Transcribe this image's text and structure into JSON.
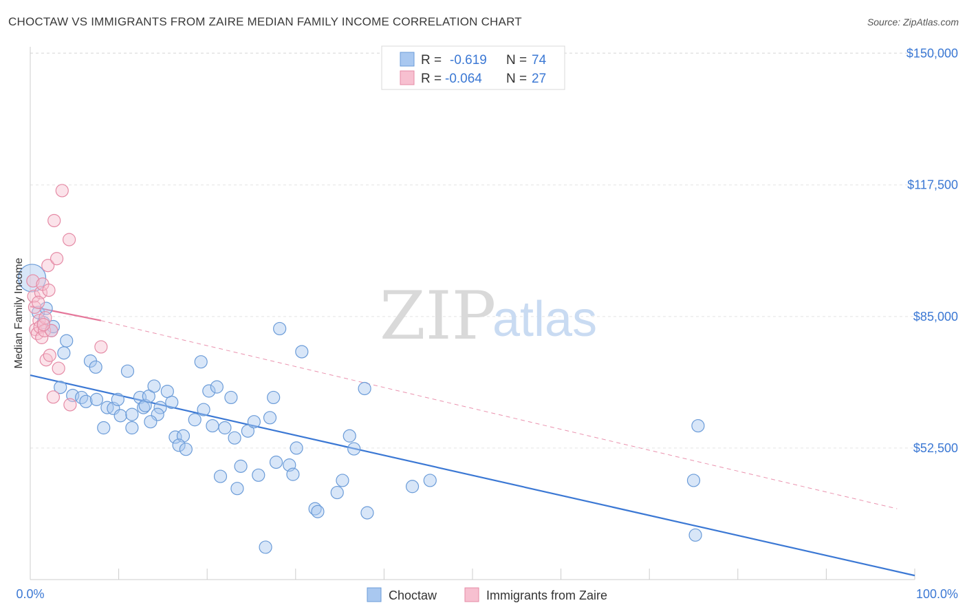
{
  "title": "CHOCTAW VS IMMIGRANTS FROM ZAIRE MEDIAN FAMILY INCOME CORRELATION CHART",
  "source": "Source: ZipAtlas.com",
  "watermark": {
    "zip": "ZIP",
    "atlas": "atlas"
  },
  "legend_top": [
    {
      "r_label": "R =",
      "r_value": "-0.619",
      "n_label": "N =",
      "n_value": "74",
      "color": "#a9c8f0",
      "stroke": "#6a9bd8"
    },
    {
      "r_label": "R =",
      "r_value": "-0.064",
      "n_label": "N =",
      "n_value": "27",
      "color": "#f7c0d0",
      "stroke": "#e58aa5"
    }
  ],
  "legend_bottom": [
    {
      "label": "Choctaw",
      "color": "#a9c8f0",
      "stroke": "#6a9bd8"
    },
    {
      "label": "Immigrants from Zaire",
      "color": "#f7c0d0",
      "stroke": "#e58aa5"
    }
  ],
  "chart_data": {
    "type": "scatter",
    "title": "CHOCTAW VS IMMIGRANTS FROM ZAIRE MEDIAN FAMILY INCOME CORRELATION CHART",
    "xlabel": "",
    "ylabel": "Median Family Income",
    "xlim": [
      0,
      100
    ],
    "ylim": [
      20000,
      153000
    ],
    "x_tick_labels": [
      "0.0%",
      "100.0%"
    ],
    "y_ticks": [
      52500,
      85000,
      117500,
      150000
    ],
    "y_tick_labels": [
      "$52,500",
      "$85,000",
      "$117,500",
      "$150,000"
    ],
    "grid": "horizontal dashed",
    "legend": "top-center",
    "series": [
      {
        "name": "Choctaw",
        "color": "#3b78d4",
        "trend": {
          "x": [
            0,
            100
          ],
          "y": [
            70500,
            21000
          ],
          "style": "solid"
        },
        "points": [
          {
            "x": 0.2,
            "y": 94500,
            "big": true
          },
          {
            "x": 0.9,
            "y": 86000
          },
          {
            "x": 1.8,
            "y": 87000
          },
          {
            "x": 1.5,
            "y": 83500
          },
          {
            "x": 2.4,
            "y": 81500
          },
          {
            "x": 2.6,
            "y": 82500
          },
          {
            "x": 4.1,
            "y": 79000
          },
          {
            "x": 3.8,
            "y": 76000
          },
          {
            "x": 6.8,
            "y": 74000
          },
          {
            "x": 7.4,
            "y": 72500
          },
          {
            "x": 11.0,
            "y": 71500
          },
          {
            "x": 3.4,
            "y": 67500
          },
          {
            "x": 4.8,
            "y": 65500
          },
          {
            "x": 5.8,
            "y": 65000
          },
          {
            "x": 6.3,
            "y": 64000
          },
          {
            "x": 7.5,
            "y": 64500
          },
          {
            "x": 8.7,
            "y": 62500
          },
          {
            "x": 9.4,
            "y": 62300
          },
          {
            "x": 9.9,
            "y": 64500
          },
          {
            "x": 10.2,
            "y": 60500
          },
          {
            "x": 11.5,
            "y": 60800
          },
          {
            "x": 8.3,
            "y": 57500
          },
          {
            "x": 11.5,
            "y": 57500
          },
          {
            "x": 12.4,
            "y": 65000
          },
          {
            "x": 12.8,
            "y": 62500
          },
          {
            "x": 13.0,
            "y": 63000
          },
          {
            "x": 13.4,
            "y": 65300
          },
          {
            "x": 14.0,
            "y": 67800
          },
          {
            "x": 14.7,
            "y": 62500
          },
          {
            "x": 15.5,
            "y": 66500
          },
          {
            "x": 14.4,
            "y": 60800
          },
          {
            "x": 13.6,
            "y": 59000
          },
          {
            "x": 16.0,
            "y": 63800
          },
          {
            "x": 16.4,
            "y": 55200
          },
          {
            "x": 17.3,
            "y": 55500
          },
          {
            "x": 16.8,
            "y": 53200
          },
          {
            "x": 17.6,
            "y": 52200
          },
          {
            "x": 18.6,
            "y": 59500
          },
          {
            "x": 19.3,
            "y": 73800
          },
          {
            "x": 19.6,
            "y": 62000
          },
          {
            "x": 20.2,
            "y": 66600
          },
          {
            "x": 20.6,
            "y": 58000
          },
          {
            "x": 21.1,
            "y": 67600
          },
          {
            "x": 21.5,
            "y": 45500
          },
          {
            "x": 22.0,
            "y": 57500
          },
          {
            "x": 22.7,
            "y": 65000
          },
          {
            "x": 23.1,
            "y": 55000
          },
          {
            "x": 23.4,
            "y": 42500
          },
          {
            "x": 23.8,
            "y": 48000
          },
          {
            "x": 24.6,
            "y": 56700
          },
          {
            "x": 25.3,
            "y": 59000
          },
          {
            "x": 25.8,
            "y": 45800
          },
          {
            "x": 26.6,
            "y": 28000
          },
          {
            "x": 27.1,
            "y": 60000
          },
          {
            "x": 27.5,
            "y": 65000
          },
          {
            "x": 27.8,
            "y": 49000
          },
          {
            "x": 28.2,
            "y": 82000
          },
          {
            "x": 29.3,
            "y": 48300
          },
          {
            "x": 29.7,
            "y": 46000
          },
          {
            "x": 30.1,
            "y": 52500
          },
          {
            "x": 30.7,
            "y": 76300
          },
          {
            "x": 32.2,
            "y": 37500
          },
          {
            "x": 32.5,
            "y": 36800
          },
          {
            "x": 34.7,
            "y": 41500
          },
          {
            "x": 35.3,
            "y": 44500
          },
          {
            "x": 36.1,
            "y": 55500
          },
          {
            "x": 36.6,
            "y": 52300
          },
          {
            "x": 37.8,
            "y": 67200
          },
          {
            "x": 38.1,
            "y": 36500
          },
          {
            "x": 43.2,
            "y": 43000
          },
          {
            "x": 45.2,
            "y": 44500
          },
          {
            "x": 75.0,
            "y": 44500
          },
          {
            "x": 75.5,
            "y": 58000
          },
          {
            "x": 75.2,
            "y": 31000
          }
        ]
      },
      {
        "name": "Immigrants from Zaire",
        "color": "#e5779a",
        "trend": {
          "x": [
            0,
            8
          ],
          "y": [
            87500,
            84000
          ],
          "style": "solid",
          "extended_x": [
            8,
            98
          ],
          "extended_y": [
            84000,
            37500
          ],
          "extended_style": "dashed"
        },
        "points": [
          {
            "x": 0.3,
            "y": 93800
          },
          {
            "x": 0.4,
            "y": 90000
          },
          {
            "x": 0.5,
            "y": 87300
          },
          {
            "x": 0.6,
            "y": 81800
          },
          {
            "x": 0.8,
            "y": 80800
          },
          {
            "x": 1.0,
            "y": 84000
          },
          {
            "x": 1.1,
            "y": 82400
          },
          {
            "x": 1.2,
            "y": 90900
          },
          {
            "x": 1.3,
            "y": 79800
          },
          {
            "x": 1.4,
            "y": 93000
          },
          {
            "x": 1.6,
            "y": 81500
          },
          {
            "x": 1.7,
            "y": 84700
          },
          {
            "x": 1.8,
            "y": 74300
          },
          {
            "x": 2.0,
            "y": 97600
          },
          {
            "x": 2.1,
            "y": 91500
          },
          {
            "x": 2.2,
            "y": 75400
          },
          {
            "x": 2.4,
            "y": 81500
          },
          {
            "x": 2.6,
            "y": 65100
          },
          {
            "x": 2.7,
            "y": 108700
          },
          {
            "x": 3.0,
            "y": 99300
          },
          {
            "x": 3.2,
            "y": 72200
          },
          {
            "x": 3.6,
            "y": 116100
          },
          {
            "x": 4.4,
            "y": 104000
          },
          {
            "x": 4.5,
            "y": 63200
          },
          {
            "x": 8.0,
            "y": 77500
          },
          {
            "x": 1.5,
            "y": 83000
          },
          {
            "x": 0.9,
            "y": 88500
          }
        ]
      }
    ]
  }
}
